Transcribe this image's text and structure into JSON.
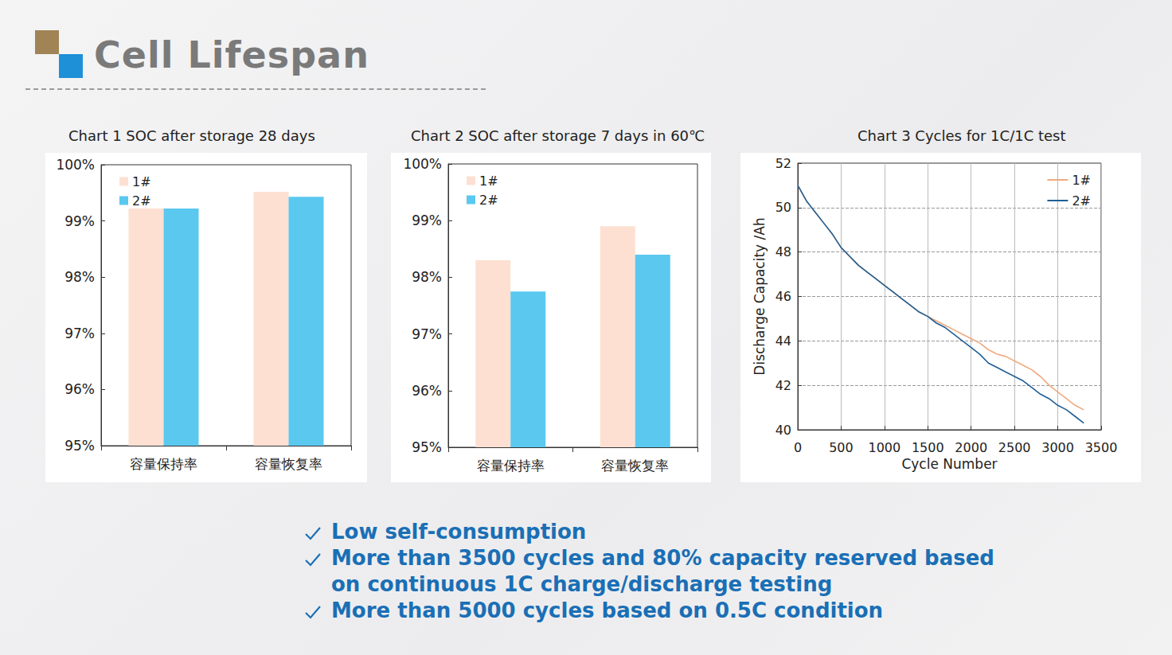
{
  "slide_title": "Cell Lifespan",
  "bullets": [
    "Low self-consumption",
    "More than 3500 cycles and 80% capacity reserved based on continuous 1C  charge/discharge testing",
    "More than 5000 cycles based on 0.5C condition"
  ],
  "chart_data": [
    {
      "type": "bar",
      "title": "Chart 1 SOC after storage 28 days",
      "categories": [
        "容量保持率",
        "容量恢复率"
      ],
      "series": [
        {
          "name": "1#",
          "color": "#fde0d2",
          "values": [
            99.22,
            99.52
          ]
        },
        {
          "name": "2#",
          "color": "#5bc8f0",
          "values": [
            99.22,
            99.43
          ]
        }
      ],
      "ylim": [
        95,
        100
      ],
      "yticks": [
        {
          "value": 95,
          "label": "95%"
        },
        {
          "value": 96,
          "label": "96%"
        },
        {
          "value": 97,
          "label": "97%"
        },
        {
          "value": 98,
          "label": "98%"
        },
        {
          "value": 99,
          "label": "99%"
        },
        {
          "value": 100,
          "label": "100%"
        }
      ],
      "grid": false,
      "legend": "upper left"
    },
    {
      "type": "bar",
      "title": "Chart 2 SOC after storage 7 days in 60℃",
      "categories": [
        "容量保持率",
        "容量恢复率"
      ],
      "series": [
        {
          "name": "1#",
          "color": "#fde0d2",
          "values": [
            98.3,
            98.9
          ]
        },
        {
          "name": "2#",
          "color": "#5bc8f0",
          "values": [
            97.75,
            98.4
          ]
        }
      ],
      "ylim": [
        95,
        100
      ],
      "yticks": [
        {
          "value": 95,
          "label": "95%"
        },
        {
          "value": 96,
          "label": "96%"
        },
        {
          "value": 97,
          "label": "97%"
        },
        {
          "value": 98,
          "label": "98%"
        },
        {
          "value": 99,
          "label": "99%"
        },
        {
          "value": 100,
          "label": "100%"
        }
      ],
      "grid": false,
      "legend": "upper left"
    },
    {
      "type": "line",
      "title": "Chart 3 Cycles for 1C/1C test",
      "x_label": "Cycle Number",
      "y_label": "Discharge Capacity /Ah",
      "x": [
        0,
        100,
        200,
        300,
        400,
        500,
        600,
        700,
        800,
        900,
        1000,
        1100,
        1200,
        1300,
        1400,
        1500,
        1600,
        1700,
        1800,
        1900,
        2000,
        2100,
        2200,
        2300,
        2400,
        2500,
        2600,
        2700,
        2800,
        2900,
        3000,
        3100,
        3200,
        3300
      ],
      "series": [
        {
          "name": "1#",
          "color": "#f0a97e",
          "values": [
            51.0,
            50.3,
            49.8,
            49.3,
            48.8,
            48.2,
            47.8,
            47.4,
            47.1,
            46.8,
            46.5,
            46.2,
            45.9,
            45.6,
            45.3,
            45.1,
            44.9,
            44.7,
            44.5,
            44.3,
            44.1,
            43.9,
            43.6,
            43.4,
            43.3,
            43.1,
            42.9,
            42.7,
            42.4,
            42.0,
            41.7,
            41.4,
            41.1,
            40.9
          ]
        },
        {
          "name": "2#",
          "color": "#1f5f96",
          "values": [
            51.0,
            50.3,
            49.8,
            49.3,
            48.8,
            48.2,
            47.8,
            47.4,
            47.1,
            46.8,
            46.5,
            46.2,
            45.9,
            45.6,
            45.3,
            45.1,
            44.8,
            44.6,
            44.3,
            44.0,
            43.7,
            43.4,
            43.0,
            42.8,
            42.6,
            42.4,
            42.2,
            41.9,
            41.6,
            41.4,
            41.1,
            40.9,
            40.6,
            40.3
          ]
        }
      ],
      "xlim": [
        0,
        3500
      ],
      "xticks": [
        0,
        500,
        1000,
        1500,
        2000,
        2500,
        3000,
        3500
      ],
      "ylim": [
        40,
        52
      ],
      "yticks": [
        40,
        42,
        44,
        46,
        48,
        50,
        52
      ],
      "grid": true,
      "legend": "upper right"
    }
  ]
}
